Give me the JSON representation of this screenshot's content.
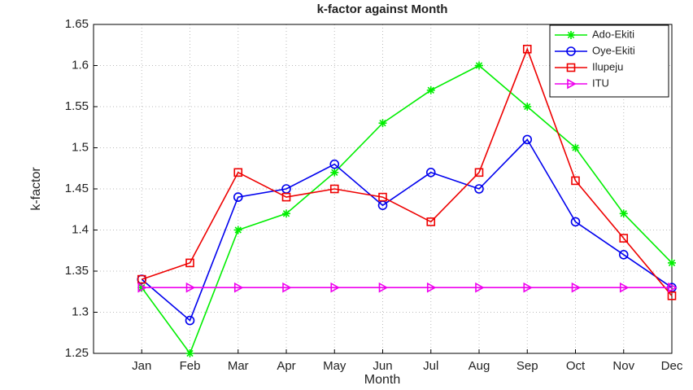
{
  "chart_data": {
    "type": "line",
    "title": "k-factor against Month",
    "x_label": "Month",
    "y_label": "k-factor",
    "categories": [
      "Jan",
      "Feb",
      "Mar",
      "Apr",
      "May",
      "Jun",
      "Jul",
      "Aug",
      "Sep",
      "Oct",
      "Nov",
      "Dec"
    ],
    "series": [
      {
        "name": "Ado-Ekiti",
        "color": "#00ee00",
        "marker": "asterisk",
        "values": [
          1.33,
          1.25,
          1.4,
          1.42,
          1.47,
          1.53,
          1.57,
          1.6,
          1.55,
          1.5,
          1.42,
          1.36
        ]
      },
      {
        "name": "Oye-Ekiti",
        "color": "#0000ee",
        "marker": "circle",
        "values": [
          1.34,
          1.29,
          1.44,
          1.45,
          1.48,
          1.43,
          1.47,
          1.45,
          1.51,
          1.41,
          1.37,
          1.33
        ]
      },
      {
        "name": "Ilupeju",
        "color": "#ee0000",
        "marker": "square",
        "values": [
          1.34,
          1.36,
          1.47,
          1.44,
          1.45,
          1.44,
          1.41,
          1.47,
          1.62,
          1.46,
          1.39,
          1.32
        ]
      },
      {
        "name": "ITU",
        "color": "#ee00ee",
        "marker": "triangle-right",
        "values": [
          1.33,
          1.33,
          1.33,
          1.33,
          1.33,
          1.33,
          1.33,
          1.33,
          1.33,
          1.33,
          1.33,
          1.33
        ]
      }
    ],
    "ylim": [
      1.25,
      1.65
    ],
    "yticks": [
      1.25,
      1.3,
      1.35,
      1.4,
      1.45,
      1.5,
      1.55,
      1.6,
      1.65
    ],
    "grid": true,
    "legend": "top-right"
  }
}
